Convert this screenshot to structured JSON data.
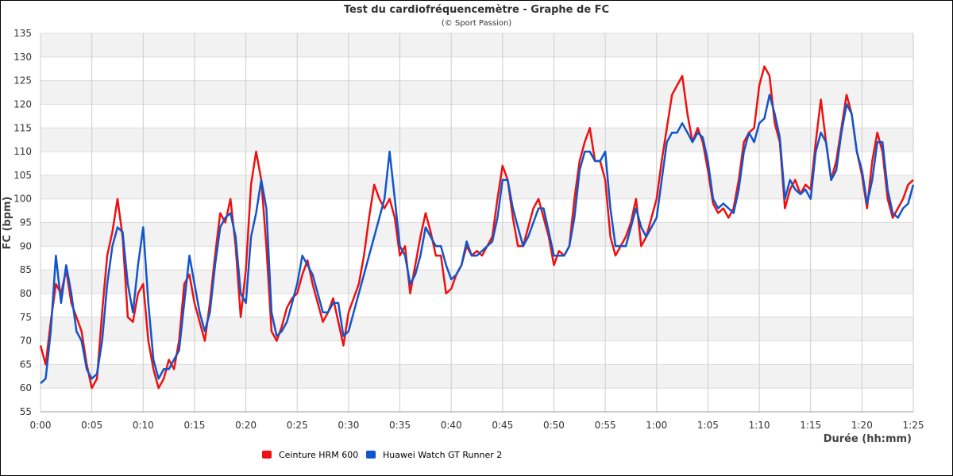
{
  "chart_data": {
    "type": "line",
    "title": "Test du cardiofréquencemètre - Graphe de FC",
    "subtitle": "(© Sport Passion)",
    "xlabel": "Durée (hh:mm)",
    "ylabel": "FC (bpm)",
    "xlim_minutes": [
      0,
      85
    ],
    "ylim": [
      55,
      135
    ],
    "grid": true,
    "legend_position": "bottom-left",
    "y_ticks": [
      "55",
      "60",
      "65",
      "70",
      "75",
      "80",
      "85",
      "90",
      "95",
      "100",
      "105",
      "110",
      "115",
      "120",
      "125",
      "130",
      "135"
    ],
    "x_ticks": [
      "0:00",
      "0:05",
      "0:10",
      "0:15",
      "0:20",
      "0:25",
      "0:30",
      "0:35",
      "0:40",
      "0:45",
      "0:50",
      "0:55",
      "1:00",
      "1:05",
      "1:10",
      "1:15",
      "1:20",
      "1:25"
    ],
    "x_start_minutes": 0,
    "x_step_minutes": 0.5,
    "series": [
      {
        "name": "Ceinture HRM 600",
        "color": "#ee1111",
        "values": [
          69,
          65,
          74,
          82,
          80,
          85,
          78,
          75,
          72,
          65,
          60,
          62,
          76,
          88,
          93,
          100,
          92,
          75,
          74,
          80,
          82,
          70,
          64,
          60,
          62,
          66,
          64,
          70,
          82,
          84,
          78,
          74,
          70,
          78,
          88,
          97,
          95,
          100,
          90,
          75,
          85,
          103,
          110,
          104,
          90,
          72,
          70,
          73,
          77,
          79,
          80,
          84,
          87,
          82,
          78,
          74,
          76,
          79,
          74,
          69,
          76,
          79,
          82,
          88,
          96,
          103,
          100,
          98,
          100,
          96,
          88,
          90,
          80,
          86,
          92,
          97,
          93,
          88,
          88,
          80,
          81,
          84,
          86,
          90,
          88,
          89,
          88,
          90,
          92,
          100,
          107,
          104,
          96,
          90,
          90,
          94,
          98,
          100,
          96,
          92,
          86,
          89,
          88,
          90,
          100,
          108,
          112,
          115,
          108,
          108,
          104,
          92,
          88,
          90,
          92,
          95,
          100,
          90,
          92,
          96,
          100,
          108,
          115,
          122,
          124,
          126,
          118,
          112,
          115,
          112,
          106,
          99,
          97,
          98,
          96,
          98,
          104,
          112,
          114,
          115,
          124,
          128,
          126,
          116,
          112,
          98,
          102,
          104,
          101,
          103,
          102,
          112,
          121,
          112,
          104,
          108,
          115,
          122,
          118,
          110,
          105,
          98,
          108,
          114,
          110,
          100,
          96,
          98,
          100,
          103,
          104
        ]
      },
      {
        "name": "Huawei Watch GT Runner 2",
        "color": "#1155cc",
        "values": [
          61,
          62,
          72,
          88,
          78,
          86,
          80,
          72,
          70,
          64,
          62,
          63,
          70,
          82,
          90,
          94,
          93,
          82,
          76,
          86,
          94,
          78,
          66,
          62,
          64,
          64,
          66,
          68,
          78,
          88,
          82,
          76,
          72,
          76,
          86,
          94,
          96,
          97,
          92,
          80,
          78,
          92,
          97,
          104,
          98,
          76,
          71,
          72,
          74,
          78,
          82,
          88,
          86,
          84,
          80,
          76,
          76,
          78,
          78,
          71,
          72,
          76,
          80,
          84,
          88,
          92,
          96,
          100,
          110,
          100,
          90,
          88,
          82,
          84,
          88,
          94,
          92,
          90,
          90,
          86,
          83,
          84,
          86,
          91,
          88,
          88,
          89,
          90,
          91,
          96,
          104,
          104,
          98,
          94,
          90,
          92,
          95,
          98,
          98,
          93,
          88,
          88,
          88,
          90,
          96,
          106,
          110,
          110,
          108,
          108,
          110,
          98,
          90,
          90,
          90,
          94,
          98,
          94,
          92,
          94,
          96,
          104,
          112,
          114,
          114,
          116,
          114,
          112,
          114,
          113,
          108,
          100,
          98,
          99,
          98,
          97,
          102,
          110,
          114,
          112,
          116,
          117,
          122,
          118,
          113,
          100,
          104,
          102,
          101,
          102,
          100,
          110,
          114,
          112,
          104,
          106,
          114,
          120,
          118,
          110,
          106,
          99,
          104,
          112,
          112,
          102,
          97,
          96,
          98,
          99,
          103
        ]
      }
    ]
  }
}
